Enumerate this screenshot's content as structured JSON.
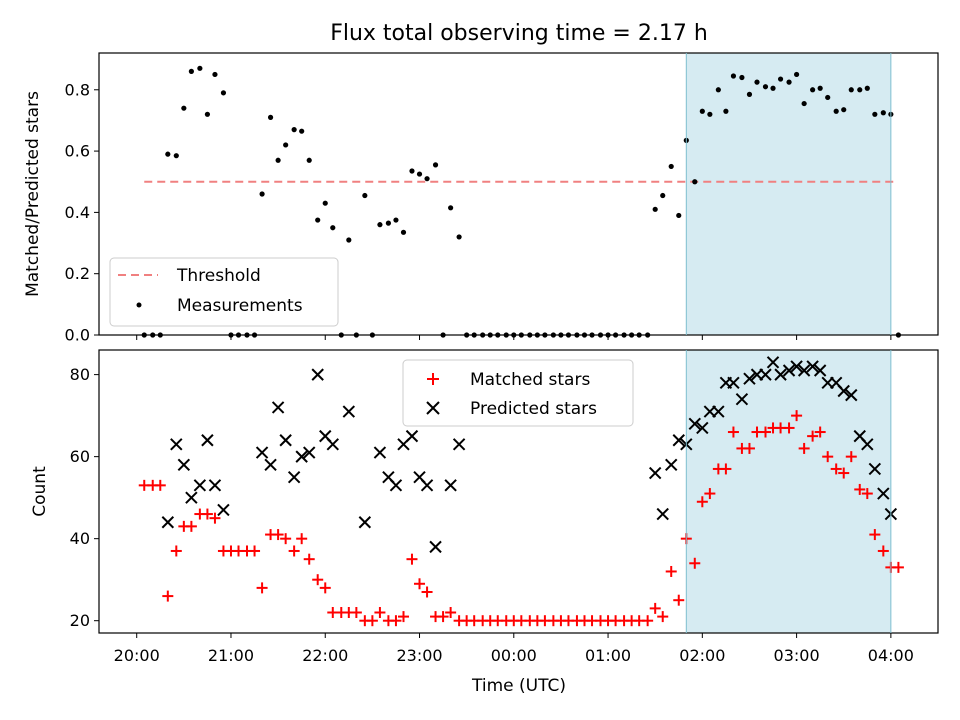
{
  "chart_data": [
    {
      "type": "scatter",
      "title": "Flux total observing time = 2.17 h",
      "xlabel": "",
      "ylabel": "Matched/Predicted stars",
      "xlim": [
        19.6,
        28.5
      ],
      "ylim": [
        0,
        0.92
      ],
      "yticks": [
        0.0,
        0.2,
        0.4,
        0.6,
        0.8
      ],
      "ytick_labels": [
        "0.0",
        "0.2",
        "0.4",
        "0.6",
        "0.8"
      ],
      "shaded_region": {
        "x": [
          25.83,
          28.0
        ],
        "color": "#add8e6"
      },
      "threshold": {
        "name": "Threshold",
        "y": 0.5,
        "x": [
          20.08,
          28.03
        ],
        "color": "#f08080",
        "style": "dashed"
      },
      "series": [
        {
          "name": "Measurements",
          "marker": "dot",
          "color": "#000000",
          "x": [
            20.08,
            20.17,
            20.25,
            20.33,
            20.42,
            20.5,
            20.58,
            20.67,
            20.75,
            20.83,
            20.92,
            21.0,
            21.08,
            21.17,
            21.25,
            21.33,
            21.42,
            21.5,
            21.58,
            21.67,
            21.75,
            21.83,
            21.92,
            22.0,
            22.08,
            22.17,
            22.25,
            22.33,
            22.42,
            22.5,
            22.58,
            22.67,
            22.75,
            22.83,
            22.92,
            23.0,
            23.08,
            23.17,
            23.25,
            23.33,
            23.42,
            23.5,
            23.58,
            23.67,
            23.75,
            23.83,
            23.92,
            24.0,
            24.08,
            24.17,
            24.25,
            24.33,
            24.42,
            24.5,
            24.58,
            24.67,
            24.75,
            24.83,
            24.92,
            25.0,
            25.08,
            25.17,
            25.25,
            25.33,
            25.42,
            25.5,
            25.58,
            25.67,
            25.75,
            25.83,
            25.92,
            26.0,
            26.08,
            26.17,
            26.25,
            26.33,
            26.42,
            26.5,
            26.58,
            26.67,
            26.75,
            26.83,
            26.92,
            27.0,
            27.08,
            27.17,
            27.25,
            27.33,
            27.42,
            27.5,
            27.58,
            27.67,
            27.75,
            27.83,
            27.92,
            28.0,
            28.08
          ],
          "y": [
            0.0,
            0.0,
            0.0,
            0.59,
            0.585,
            0.74,
            0.86,
            0.87,
            0.72,
            0.85,
            0.79,
            0.0,
            0.0,
            0.0,
            0.0,
            0.46,
            0.71,
            0.57,
            0.62,
            0.67,
            0.665,
            0.57,
            0.375,
            0.43,
            0.35,
            0.0,
            0.31,
            0.0,
            0.455,
            0.0,
            0.36,
            0.365,
            0.375,
            0.335,
            0.535,
            0.525,
            0.51,
            0.555,
            0.0,
            0.415,
            0.32,
            0.0,
            0.0,
            0.0,
            0.0,
            0.0,
            0.0,
            0.0,
            0.0,
            0.0,
            0.0,
            0.0,
            0.0,
            0.0,
            0.0,
            0.0,
            0.0,
            0.0,
            0.0,
            0.0,
            0.0,
            0.0,
            0.0,
            0.0,
            0.0,
            0.41,
            0.455,
            0.55,
            0.39,
            0.635,
            0.5,
            0.73,
            0.72,
            0.8,
            0.73,
            0.845,
            0.84,
            0.785,
            0.825,
            0.81,
            0.805,
            0.835,
            0.825,
            0.85,
            0.755,
            0.8,
            0.805,
            0.775,
            0.73,
            0.735,
            0.8,
            0.8,
            0.805,
            0.72,
            0.725,
            0.72,
            0.0
          ]
        }
      ],
      "legend": {
        "position": "lower-left"
      }
    },
    {
      "type": "scatter",
      "title": "",
      "xlabel": "Time (UTC)",
      "ylabel": "Count",
      "xlim": [
        19.6,
        28.5
      ],
      "ylim": [
        17,
        86
      ],
      "yticks": [
        20,
        40,
        60,
        80
      ],
      "ytick_labels": [
        "20",
        "40",
        "60",
        "80"
      ],
      "xticks": [
        20,
        21,
        22,
        23,
        24,
        25,
        26,
        27,
        28
      ],
      "xtick_labels": [
        "20:00",
        "21:00",
        "22:00",
        "23:00",
        "00:00",
        "01:00",
        "02:00",
        "03:00",
        "04:00"
      ],
      "shaded_region": {
        "x": [
          25.83,
          28.0
        ],
        "color": "#add8e6"
      },
      "series": [
        {
          "name": "Matched stars",
          "marker": "plus",
          "color": "#ff0000",
          "x": [
            20.08,
            20.17,
            20.25,
            20.33,
            20.42,
            20.5,
            20.58,
            20.67,
            20.75,
            20.83,
            20.92,
            21.0,
            21.08,
            21.17,
            21.25,
            21.33,
            21.42,
            21.5,
            21.58,
            21.67,
            21.75,
            21.83,
            21.92,
            22.0,
            22.08,
            22.17,
            22.25,
            22.33,
            22.42,
            22.5,
            22.58,
            22.67,
            22.75,
            22.83,
            22.92,
            23.0,
            23.08,
            23.17,
            23.25,
            23.33,
            23.42,
            23.5,
            23.58,
            23.67,
            23.75,
            23.83,
            23.92,
            24.0,
            24.08,
            24.17,
            24.25,
            24.33,
            24.42,
            24.5,
            24.58,
            24.67,
            24.75,
            24.83,
            24.92,
            25.0,
            25.08,
            25.17,
            25.25,
            25.33,
            25.42,
            25.5,
            25.58,
            25.67,
            25.75,
            25.83,
            25.92,
            26.0,
            26.08,
            26.17,
            26.25,
            26.33,
            26.42,
            26.5,
            26.58,
            26.67,
            26.75,
            26.83,
            26.92,
            27.0,
            27.08,
            27.17,
            27.25,
            27.33,
            27.42,
            27.5,
            27.58,
            27.67,
            27.75,
            27.83,
            27.92,
            28.0,
            28.08
          ],
          "y": [
            53,
            53,
            53,
            26,
            37,
            43,
            43,
            46,
            46,
            45,
            37,
            37,
            37,
            37,
            37,
            28,
            41,
            41,
            40,
            37,
            40,
            35,
            30,
            28,
            22,
            22,
            22,
            22,
            20,
            20,
            22,
            20,
            20,
            21,
            35,
            29,
            27,
            21,
            21,
            22,
            20,
            20,
            20,
            20,
            20,
            20,
            20,
            20,
            20,
            20,
            20,
            20,
            20,
            20,
            20,
            20,
            20,
            20,
            20,
            20,
            20,
            20,
            20,
            20,
            20,
            23,
            21,
            32,
            25,
            40,
            34,
            49,
            51,
            57,
            57,
            66,
            62,
            62,
            66,
            66,
            67,
            67,
            67,
            70,
            62,
            65,
            66,
            60,
            57,
            56,
            60,
            52,
            51,
            41,
            37,
            33,
            33
          ]
        },
        {
          "name": "Predicted stars",
          "marker": "x",
          "color": "#000000",
          "x": [
            20.33,
            20.42,
            20.5,
            20.58,
            20.67,
            20.75,
            20.83,
            20.92,
            21.33,
            21.42,
            21.5,
            21.58,
            21.67,
            21.75,
            21.83,
            21.92,
            22.0,
            22.08,
            22.25,
            22.42,
            22.58,
            22.67,
            22.75,
            22.83,
            22.92,
            23.0,
            23.08,
            23.17,
            23.33,
            23.42,
            25.5,
            25.58,
            25.67,
            25.75,
            25.83,
            25.92,
            26.0,
            26.08,
            26.17,
            26.25,
            26.33,
            26.42,
            26.5,
            26.58,
            26.67,
            26.75,
            26.83,
            26.92,
            27.0,
            27.08,
            27.17,
            27.25,
            27.33,
            27.42,
            27.5,
            27.58,
            27.67,
            27.75,
            27.83,
            27.92,
            28.0
          ],
          "y": [
            44,
            63,
            58,
            50,
            53,
            64,
            53,
            47,
            61,
            58,
            72,
            64,
            55,
            60,
            61,
            80,
            65,
            63,
            71,
            44,
            61,
            55,
            53,
            63,
            65,
            55,
            53,
            38,
            53,
            63,
            56,
            46,
            58,
            64,
            63,
            68,
            67,
            71,
            71,
            78,
            78,
            74,
            79,
            80,
            80,
            83,
            80,
            81,
            82,
            81,
            82,
            81,
            78,
            78,
            76,
            75,
            65,
            63,
            57,
            51,
            46
          ]
        }
      ],
      "legend": {
        "position": "upper-center"
      }
    }
  ]
}
